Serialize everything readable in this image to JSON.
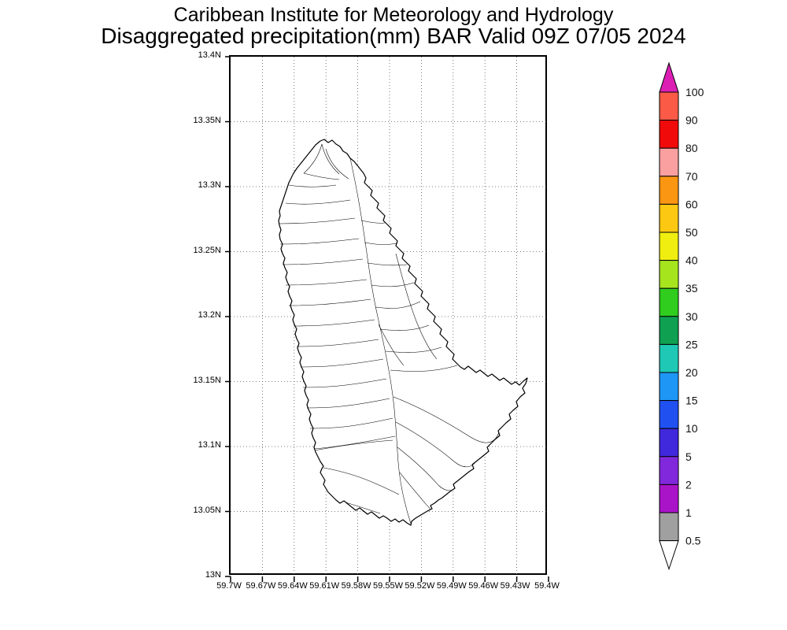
{
  "header": {
    "line1": "Caribbean Institute for Meteorology and Hydrology",
    "line2": "Disaggregated precipitation(mm) BAR Valid 09Z 07/05 2024"
  },
  "map": {
    "lat_ticks": [
      "13.4N",
      "13.35N",
      "13.3N",
      "13.25N",
      "13.2N",
      "13.15N",
      "13.1N",
      "13.05N",
      "13N"
    ],
    "lon_ticks": [
      "59.7W",
      "59.67W",
      "59.64W",
      "59.61W",
      "59.58W",
      "59.55W",
      "59.52W",
      "59.49W",
      "59.46W",
      "59.43W",
      "59.4W"
    ]
  },
  "colorbar": {
    "labels": [
      "100",
      "90",
      "80",
      "70",
      "60",
      "50",
      "40",
      "35",
      "30",
      "25",
      "20",
      "15",
      "10",
      "5",
      "2",
      "1",
      "0.5"
    ],
    "segment_colors": [
      "#fa5a46",
      "#f00a0a",
      "#faa0a0",
      "#fb9612",
      "#fdc812",
      "#f0ee10",
      "#a6e41e",
      "#30cc1e",
      "#0fa052",
      "#1ec8b4",
      "#1e96f5",
      "#2050f0",
      "#4028dc",
      "#8228dc",
      "#aa14c8",
      "#a0a0a0"
    ],
    "arrow_top_color": "#dc1eb4",
    "arrow_bottom_color": "#ffffff"
  }
}
